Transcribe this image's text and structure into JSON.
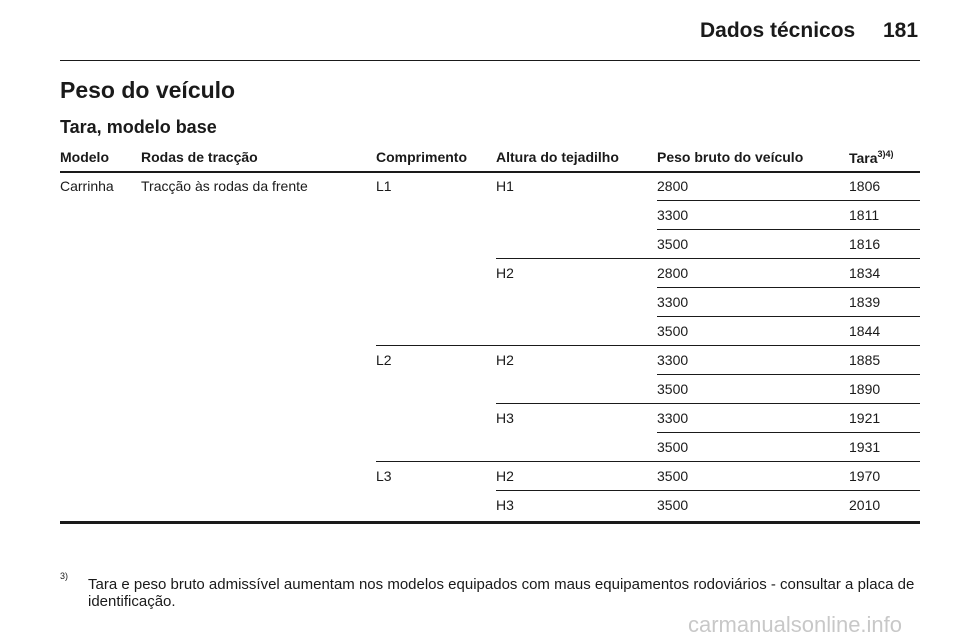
{
  "header": {
    "section": "Dados técnicos",
    "page_number": "181"
  },
  "title": "Peso do veículo",
  "subtitle": "Tara, modelo base",
  "table": {
    "columns": [
      "Modelo",
      "Rodas de tracção",
      "Comprimento",
      "Altura do tejadilho",
      "Peso bruto do veículo",
      {
        "text": "Tara",
        "sup": "3)4)"
      }
    ],
    "rows": [
      {
        "model": "Carrinha",
        "drive": "Tracção às rodas da frente",
        "length": "L1",
        "height": "H1",
        "gross": 2800,
        "tare": 1806
      },
      {
        "gross": 3300,
        "tare": 1811
      },
      {
        "gross": 3500,
        "tare": 1816
      },
      {
        "height": "H2",
        "gross": 2800,
        "tare": 1834
      },
      {
        "gross": 3300,
        "tare": 1839
      },
      {
        "gross": 3500,
        "tare": 1844
      },
      {
        "length": "L2",
        "height": "H2",
        "gross": 3300,
        "tare": 1885
      },
      {
        "gross": 3500,
        "tare": 1890
      },
      {
        "height": "H3",
        "gross": 3300,
        "tare": 1921
      },
      {
        "gross": 3500,
        "tare": 1931
      },
      {
        "length": "L3",
        "height": "H2",
        "gross": 3500,
        "tare": 1970
      },
      {
        "height": "H3",
        "gross": 3500,
        "tare": 2010
      }
    ]
  },
  "footnote": {
    "mark": "3)",
    "text": "Tara e peso bruto admissível aumentam nos modelos equipados com maus equipamentos rodoviários - consultar a placa de identificação."
  },
  "watermark": "carmanualsonline.info"
}
